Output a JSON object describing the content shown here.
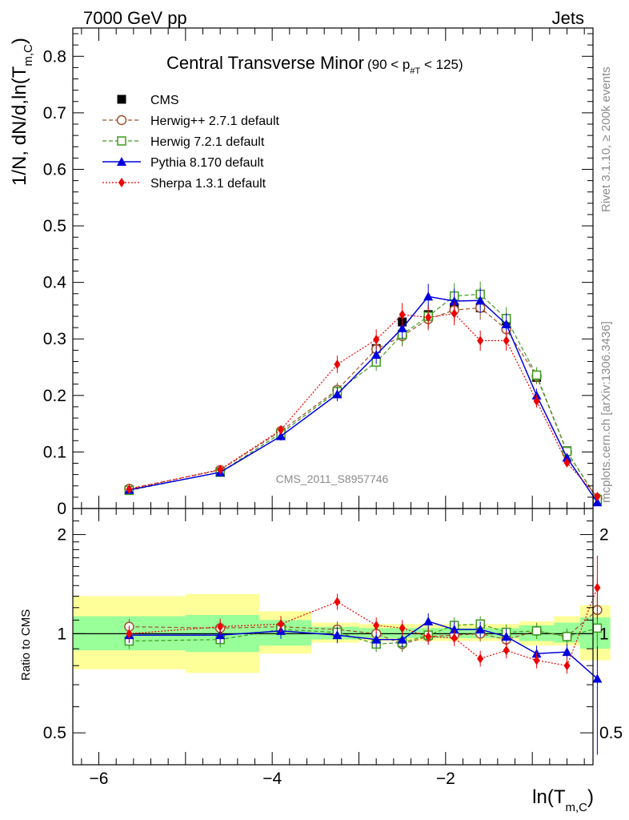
{
  "header": {
    "left": "7000 GeV pp",
    "right": "Jets"
  },
  "side_labels": {
    "rivet": "Rivet 3.1.10, ≥ 200k events",
    "mcplots": "mcplots.cern.ch [arXiv:1306.3436]"
  },
  "watermark": "CMS_2011_S8957746",
  "colors": {
    "cms": "#000000",
    "herwigpp": "#a0522d",
    "herwig7": "#3d9a1e",
    "pythia": "#0000dd",
    "sherpa": "#ee0000",
    "band_inner": "#99ff99",
    "band_outer": "#ffff99"
  },
  "chart_data": [
    {
      "type": "line",
      "title": "Central Transverse Minor",
      "title_cut": "(90 < p",
      "title_cut_sub": "#T",
      "title_cut_end": " < 125)",
      "ylabel": "1/N",
      "ylabel_mid": ", dN/d,ln(T",
      "ylabel_sub": "m,C",
      "ylabel_end": ")",
      "xlim": [
        -6.3,
        -0.3
      ],
      "ylim": [
        0,
        0.85
      ],
      "x_ticks": [
        -6,
        -4,
        -2
      ],
      "x_tick_labels": [
        "−6",
        "−4",
        "−2"
      ],
      "y_ticks": [
        0,
        0.1,
        0.2,
        0.3,
        0.4,
        0.5,
        0.6,
        0.7,
        0.8
      ],
      "y_tick_labels": [
        "0",
        "0.1",
        "0.2",
        "0.3",
        "0.4",
        "0.5",
        "0.6",
        "0.7",
        "0.8"
      ],
      "legend_position": "top-left",
      "x": [
        -5.65,
        -4.6,
        -3.9,
        -3.25,
        -2.8,
        -2.5,
        -2.2,
        -1.9,
        -1.6,
        -1.3,
        -0.95,
        -0.6,
        -0.25
      ],
      "series": [
        {
          "key": "cms",
          "name": "CMS",
          "marker": "square-filled",
          "values": [
            0.033,
            0.066,
            0.131,
            0.205,
            0.283,
            0.33,
            0.343,
            0.356,
            0.355,
            0.332,
            0.232,
            0.102,
            0.015
          ]
        },
        {
          "key": "herwigpp",
          "name": "Herwig++ 2.7.1 default",
          "marker": "circle-open",
          "values": [
            0.035,
            0.068,
            0.137,
            0.21,
            0.282,
            0.305,
            0.335,
            0.351,
            0.355,
            0.317,
            0.234,
            0.1,
            0.018
          ]
        },
        {
          "key": "herwig7",
          "name": "Herwig 7.2.1 default",
          "marker": "square-open",
          "values": [
            0.032,
            0.064,
            0.133,
            0.207,
            0.259,
            0.308,
            0.34,
            0.376,
            0.379,
            0.336,
            0.236,
            0.101,
            0.016
          ]
        },
        {
          "key": "pythia",
          "name": "Pythia 8.170 default",
          "marker": "triangle",
          "values": [
            0.033,
            0.064,
            0.128,
            0.202,
            0.272,
            0.319,
            0.375,
            0.367,
            0.368,
            0.326,
            0.2,
            0.09,
            0.011
          ]
        },
        {
          "key": "sherpa",
          "name": "Sherpa 1.3.1 default",
          "marker": "diamond",
          "values": [
            0.034,
            0.069,
            0.139,
            0.255,
            0.299,
            0.343,
            0.338,
            0.345,
            0.297,
            0.297,
            0.19,
            0.081,
            0.021
          ]
        }
      ]
    },
    {
      "type": "line",
      "ylabel": "Ratio to CMS",
      "xlabel": "ln(T",
      "xlabel_sub": "m,C",
      "xlabel_end": ")",
      "ylim": [
        0.4,
        2.4
      ],
      "y_scale": "log",
      "y_ticks": [
        0.5,
        1,
        2
      ],
      "y_tick_labels": [
        "0.5",
        "1",
        "2"
      ],
      "x": [
        -5.65,
        -4.6,
        -3.9,
        -3.25,
        -2.8,
        -2.5,
        -2.2,
        -1.9,
        -1.6,
        -1.3,
        -0.95,
        -0.6,
        -0.25
      ],
      "bands": {
        "edges": [
          -6.3,
          -5.0,
          -4.15,
          -3.55,
          -3.0,
          -2.6,
          -2.35,
          -2.05,
          -1.75,
          -1.45,
          -1.15,
          -0.75,
          -0.45,
          -0.1
        ],
        "inner_low": [
          0.89,
          0.88,
          0.92,
          0.96,
          0.97,
          0.97,
          0.97,
          0.97,
          0.97,
          0.97,
          0.95,
          0.94,
          0.9
        ],
        "inner_high": [
          1.13,
          1.14,
          1.1,
          1.05,
          1.04,
          1.04,
          1.04,
          1.04,
          1.04,
          1.04,
          1.06,
          1.08,
          1.12
        ],
        "outer_low": [
          0.78,
          0.76,
          0.87,
          0.94,
          0.95,
          0.95,
          0.95,
          0.95,
          0.95,
          0.95,
          0.92,
          0.92,
          0.83
        ],
        "outer_high": [
          1.3,
          1.32,
          1.17,
          1.08,
          1.07,
          1.07,
          1.07,
          1.07,
          1.07,
          1.07,
          1.09,
          1.13,
          1.22
        ]
      },
      "series": [
        {
          "key": "herwigpp",
          "values": [
            1.05,
            1.04,
            1.05,
            1.03,
            1.0,
            0.93,
            0.98,
            0.99,
            1.0,
            0.96,
            1.02,
            0.98,
            1.18
          ]
        },
        {
          "key": "herwig7",
          "values": [
            0.95,
            0.96,
            1.03,
            1.01,
            0.93,
            0.94,
            0.99,
            1.06,
            1.07,
            1.01,
            1.02,
            0.98,
            1.04
          ]
        },
        {
          "key": "pythia",
          "values": [
            0.99,
            0.99,
            1.02,
            0.99,
            0.96,
            0.96,
            1.09,
            1.03,
            1.03,
            0.98,
            0.87,
            0.88,
            0.73
          ]
        },
        {
          "key": "sherpa",
          "values": [
            1.0,
            1.05,
            1.07,
            1.25,
            1.06,
            1.04,
            0.98,
            0.97,
            0.84,
            0.89,
            0.83,
            0.8,
            1.38
          ]
        }
      ]
    }
  ]
}
